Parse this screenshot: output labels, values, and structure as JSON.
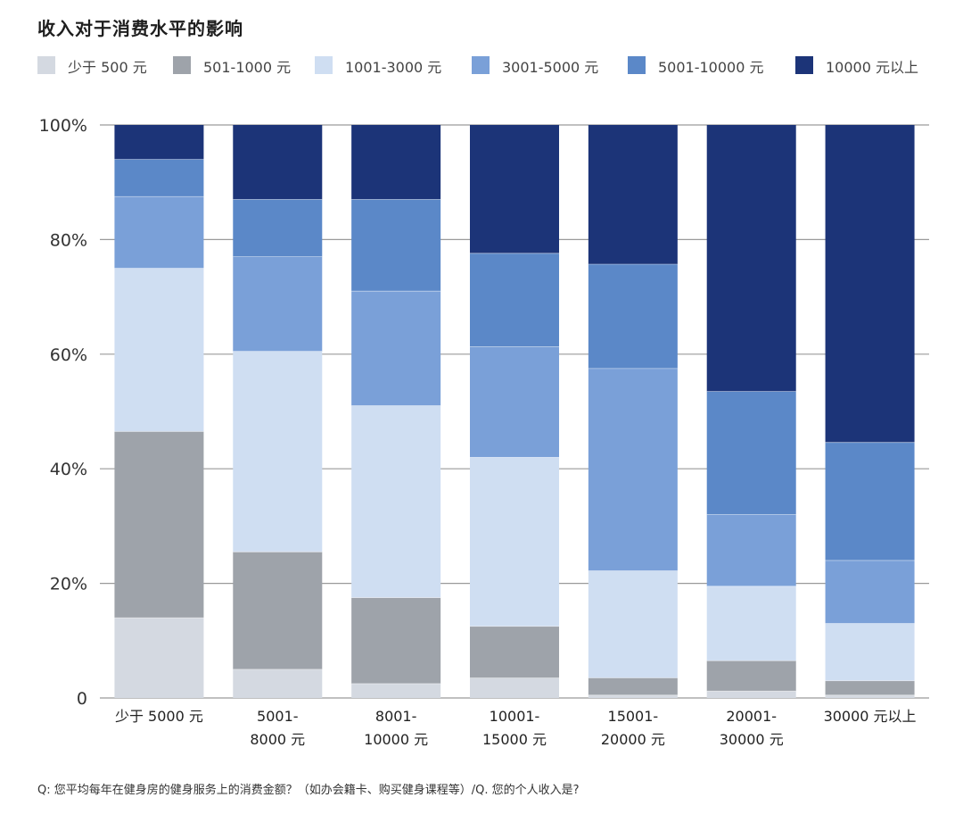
{
  "chart_data": {
    "type": "bar",
    "stacked": true,
    "normalized": true,
    "title": "收入对于消费水平的影响",
    "categories": [
      "少于 5000 元",
      "5001-\n8000 元",
      "8001-\n10000 元",
      "10001-\n15000 元",
      "15001-\n20000 元",
      "20001-\n30000 元",
      "30000 元以上"
    ],
    "series": [
      {
        "name": "少于 500 元",
        "color": "#d4d9e1",
        "values": [
          14,
          5,
          2.5,
          3.5,
          0.5,
          1.2,
          0.5
        ]
      },
      {
        "name": "501-1000 元",
        "color": "#9ea3aa",
        "values": [
          32.5,
          20.5,
          15,
          9,
          3,
          5.3,
          2.5
        ]
      },
      {
        "name": "1001-3000 元",
        "color": "#cfdef2",
        "values": [
          28.5,
          35,
          33.5,
          29.5,
          18.7,
          13,
          10
        ]
      },
      {
        "name": "3001-5000 元",
        "color": "#7aa0d8",
        "values": [
          12.5,
          16.5,
          20,
          19.3,
          35.3,
          12.5,
          11
        ]
      },
      {
        "name": "5001-10000 元",
        "color": "#5b88c8",
        "values": [
          6.5,
          10,
          16,
          16.3,
          18.2,
          21.5,
          20.6
        ]
      },
      {
        "name": "10000 元以上",
        "color": "#1c3478",
        "values": [
          6,
          13,
          13,
          22.4,
          24.3,
          46.5,
          55.4
        ]
      }
    ],
    "yticks": [
      "0",
      "20%",
      "40%",
      "60%",
      "80%",
      "100%"
    ],
    "ylim": [
      0,
      100
    ],
    "xlabel": "",
    "ylabel": "",
    "legend_position": "top"
  },
  "footnote": "Q: 您平均每年在健身房的健身服务上的消费金额？（如办会籍卡、购买健身课程等）/Q. 您的个人收入是?"
}
